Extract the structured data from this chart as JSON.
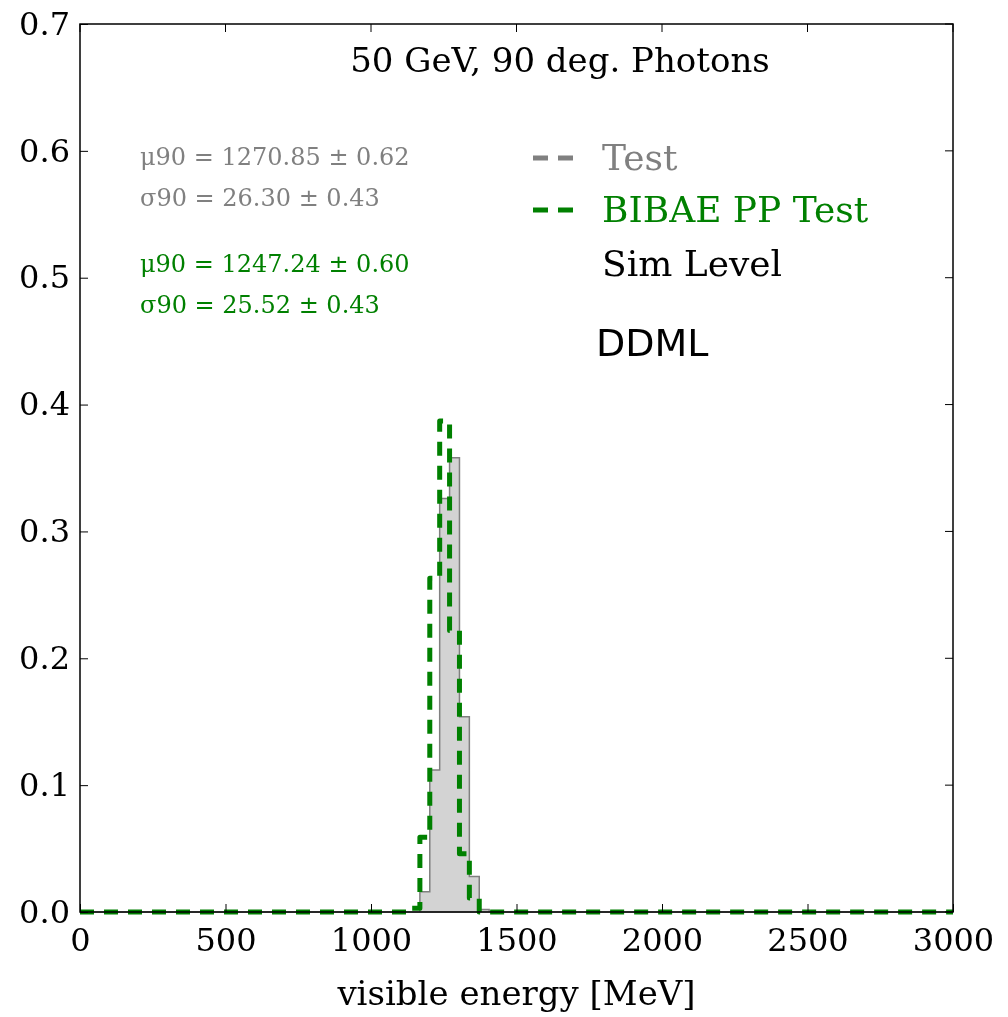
{
  "chart_data": {
    "type": "histogram",
    "title": "50 GeV, 90 deg. Photons",
    "xlabel": "visible energy [MeV]",
    "bins": [
      0,
      1134,
      1168,
      1202,
      1236,
      1270,
      1304,
      1338,
      1372,
      1406,
      3000
    ],
    "series": [
      {
        "name": "Test",
        "color": "#808080",
        "values": [
          0,
          0,
          0.016,
          0.112,
          0.326,
          0.358,
          0.154,
          0.028,
          0.002,
          0
        ]
      },
      {
        "name": "BIBAE PP Test",
        "color": "#008000",
        "values": [
          0,
          0.003,
          0.059,
          0.263,
          0.387,
          0.222,
          0.046,
          0.011,
          0,
          0
        ]
      }
    ],
    "xlim": [
      0,
      3000
    ],
    "xticks": [
      0,
      500,
      1000,
      1500,
      2000,
      2500,
      3000
    ],
    "ylim": [
      0,
      0.7
    ],
    "yticks": [
      {
        "value": 0,
        "label": "0.0"
      },
      {
        "value": 0.1,
        "label": "0.1"
      },
      {
        "value": 0.2,
        "label": "0.2"
      },
      {
        "value": 0.3,
        "label": "0.3"
      },
      {
        "value": 0.4,
        "label": "0.4"
      },
      {
        "value": 0.5,
        "label": "0.5"
      },
      {
        "value": 0.6,
        "label": "0.6"
      },
      {
        "value": 0.7,
        "label": "0.7"
      }
    ],
    "annotations": [
      "μ90 = 1270.85 ± 0.62",
      "σ90 = 26.30 ± 0.43",
      "μ90 = 1247.24 ± 0.60",
      "σ90 = 25.52 ± 0.43",
      "Sim Level",
      "DDML"
    ],
    "legend": "top right",
    "line_style": "dashed",
    "grid": false
  }
}
